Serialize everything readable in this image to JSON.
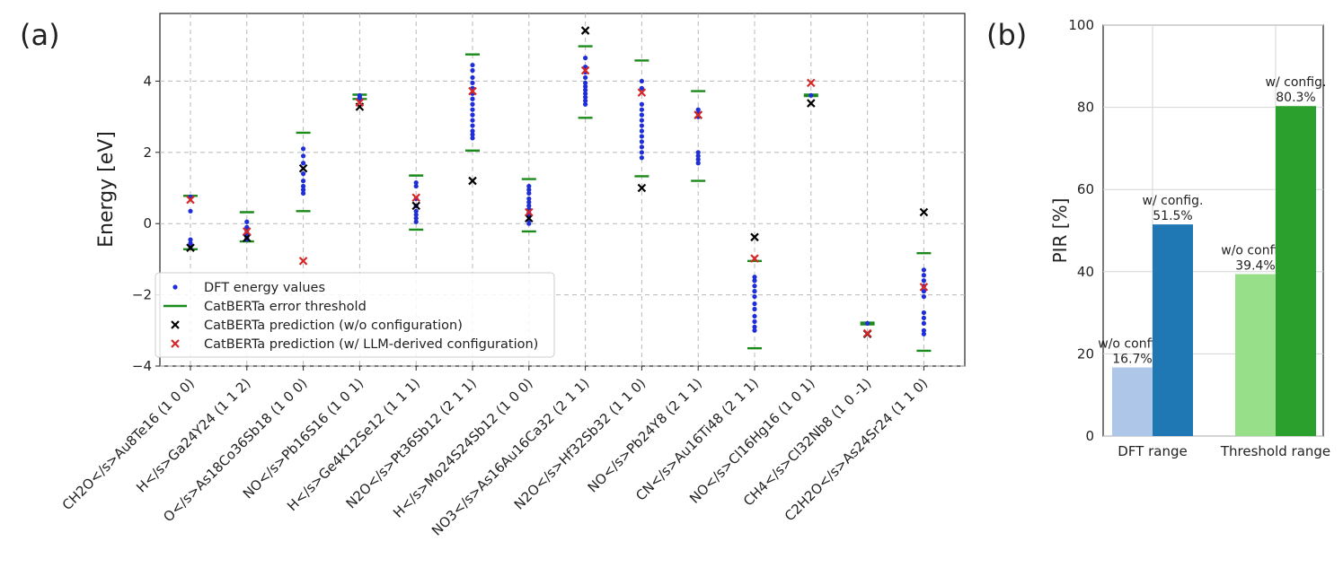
{
  "chart_data": [
    {
      "panel_label": "(a)",
      "type": "scatter",
      "ylabel": "Energy [eV]",
      "ylim": [
        -4,
        5.9
      ],
      "yticks": [
        "−4",
        "−2",
        "0",
        "2",
        "4"
      ],
      "ytick_values": [
        -4,
        -2,
        0,
        2,
        4
      ],
      "grid": true,
      "categories": [
        "CH2O</s>Au8Te16 (1 0 0)",
        "H</s>Ga24Y24 (1 1 2)",
        "O</s>As18Co36Sb18 (1 0 0)",
        "NO</s>Pb16S16 (1 0 1)",
        "H</s>Ge4K12Se12 (1 1 1)",
        "N2O</s>Pt36Sb12 (2 1 1)",
        "H</s>Mo24S24Sb12 (1 0 0)",
        "NO3</s>As16Au16Ca32 (2 1 1)",
        "N2O</s>Hf32Sb32 (1 1 0)",
        "NO</s>Pb24Y8 (2 1 1)",
        "CN</s>Au16Ti48 (2 1 1)",
        "NO</s>Cl16Hg16 (1 0 1)",
        "CH4</s>Cl32Nb8 (1 0 -1)",
        "C2H2O</s>As24Sr24 (1 1 0)"
      ],
      "legend": {
        "position": "lower-left",
        "entries": [
          {
            "label": "DFT energy values",
            "color": "#1f2ed6"
          },
          {
            "label": "CatBERTa error threshold",
            "color": "#1a8a1a"
          },
          {
            "label": "CatBERTa prediction (w/o configuration)",
            "color": "#000000"
          },
          {
            "label": "CatBERTa prediction (w/ LLM-derived configuration)",
            "color": "#d62728"
          }
        ]
      },
      "series": [
        {
          "name": "DFT energy values",
          "values": [
            [
              0.75,
              0.35,
              -0.45,
              -0.55,
              -0.65
            ],
            [
              0.05,
              -0.1,
              -0.2,
              -0.3,
              -0.4,
              -0.45
            ],
            [
              2.1,
              1.9,
              1.7,
              1.4,
              1.2,
              1.05,
              0.95,
              0.85
            ],
            [
              3.6,
              3.55,
              3.5
            ],
            [
              1.15,
              1.05,
              0.7,
              0.5,
              0.35,
              0.25,
              0.15,
              0.05
            ],
            [
              4.45,
              4.3,
              4.1,
              3.95,
              3.8,
              3.65,
              3.5,
              3.35,
              3.2,
              3.05,
              2.9,
              2.75,
              2.6,
              2.5,
              2.4
            ],
            [
              1.05,
              0.95,
              0.85,
              0.7,
              0.6,
              0.5,
              0.4,
              0.3,
              0.2,
              0.1,
              0.0
            ],
            [
              4.65,
              4.4,
              4.25,
              4.1,
              3.95,
              3.85,
              3.75,
              3.65,
              3.55,
              3.45,
              3.35
            ],
            [
              4.0,
              3.8,
              3.35,
              3.2,
              3.05,
              2.9,
              2.75,
              2.6,
              2.45,
              2.3,
              2.15,
              2.0,
              1.85
            ],
            [
              3.2,
              3.1,
              3.0,
              2.0,
              1.9,
              1.8,
              1.7
            ],
            [
              -1.5,
              -1.6,
              -1.75,
              -1.9,
              -2.05,
              -2.25,
              -2.4,
              -2.6,
              -2.75,
              -2.9,
              -3.0
            ],
            [
              3.6
            ],
            [
              -2.8
            ],
            [
              -1.3,
              -1.45,
              -1.6,
              -1.75,
              -1.9,
              -2.05,
              -2.5,
              -2.65,
              -2.8,
              -3.0,
              -3.1
            ]
          ]
        },
        {
          "name": "CatBERTa error threshold",
          "values": [
            [
              0.78,
              -0.72
            ],
            [
              0.32,
              -0.5
            ],
            [
              2.55,
              0.35
            ],
            [
              3.62,
              3.5
            ],
            [
              1.35,
              -0.17
            ],
            [
              4.75,
              2.05
            ],
            [
              1.25,
              -0.22
            ],
            [
              4.98,
              2.97
            ],
            [
              4.58,
              1.33
            ],
            [
              3.72,
              1.2
            ],
            [
              -1.05,
              -3.5
            ],
            [
              3.62,
              3.58
            ],
            [
              -2.78,
              -2.83
            ],
            [
              -0.83,
              -3.57
            ]
          ]
        },
        {
          "name": "CatBERTa prediction (w/o configuration)",
          "values": [
            -0.68,
            -0.4,
            1.55,
            3.28,
            0.5,
            1.2,
            0.15,
            5.42,
            1.0,
            3.05,
            -0.38,
            3.38,
            -3.1,
            0.32
          ]
        },
        {
          "name": "CatBERTa prediction (w/ LLM-derived configuration)",
          "values": [
            0.67,
            -0.22,
            -1.05,
            3.4,
            0.73,
            3.72,
            0.32,
            4.3,
            3.68,
            3.05,
            -0.98,
            3.95,
            -3.08,
            -1.78
          ]
        }
      ]
    },
    {
      "panel_label": "(b)",
      "type": "bar",
      "ylabel": "PIR [%]",
      "ylim": [
        0,
        100
      ],
      "yticks": [
        "0",
        "20",
        "40",
        "60",
        "80",
        "100"
      ],
      "ytick_values": [
        0,
        20,
        40,
        60,
        80,
        100
      ],
      "grid": true,
      "categories": [
        "DFT range",
        "Threshold range"
      ],
      "series": [
        {
          "name": "w/o config.",
          "values": [
            16.7,
            39.4
          ],
          "labels": [
            "16.7%",
            "39.4%"
          ],
          "colors": [
            "#aec7e8",
            "#98df8a"
          ]
        },
        {
          "name": "w/ config.",
          "values": [
            51.5,
            80.3
          ],
          "labels": [
            "51.5%",
            "80.3%"
          ],
          "colors": [
            "#1f77b4",
            "#2ca02c"
          ]
        }
      ]
    }
  ]
}
